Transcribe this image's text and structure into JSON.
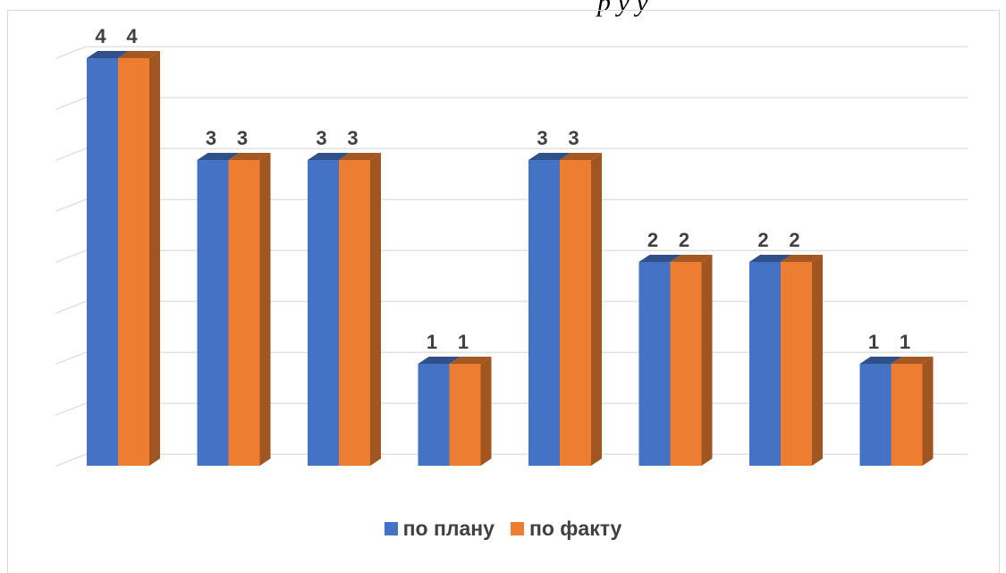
{
  "header": {
    "partial_text": "р у у"
  },
  "chart_data": {
    "type": "bar",
    "categories": [
      "",
      "",
      "",
      "",
      "",
      "",
      "",
      ""
    ],
    "series": [
      {
        "name": "по плану",
        "values": [
          4,
          3,
          3,
          1,
          3,
          2,
          2,
          1
        ],
        "color": "#4472c4"
      },
      {
        "name": "по факту",
        "values": [
          4,
          3,
          3,
          1,
          3,
          2,
          2,
          1
        ],
        "color": "#ed7d31"
      }
    ],
    "ylim": [
      0,
      4
    ],
    "grid": true,
    "legend_position": "bottom",
    "data_labels": true,
    "style": "3d-column"
  }
}
